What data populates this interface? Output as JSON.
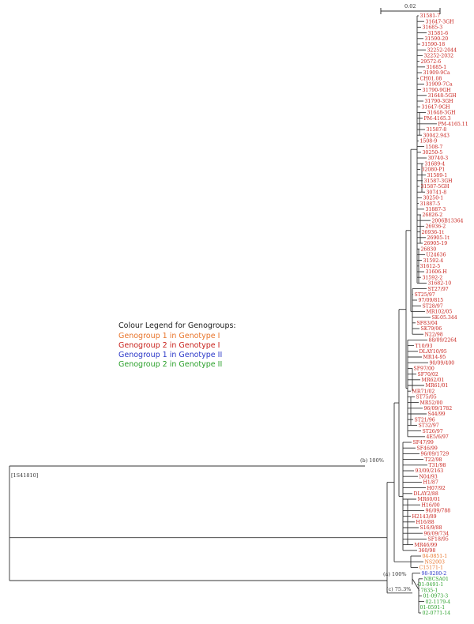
{
  "colors": {
    "orange": "#e8742a",
    "red": "#c8221c",
    "blue": "#2a37c8",
    "green": "#2aa02a",
    "tree": "#333333"
  },
  "scale_bar": {
    "label": "0.02"
  },
  "legend": {
    "title": "Colour Legend for Genogroups:",
    "items": [
      {
        "text": "Genogroup 1 in Genotype I",
        "color": "orange"
      },
      {
        "text": "Genogroup 2 in Genotype I",
        "color": "red"
      },
      {
        "text": "Genogroup 1 in Genotype II",
        "color": "blue"
      },
      {
        "text": "Genogroup 2 in Genotype II",
        "color": "green"
      }
    ]
  },
  "nodes": {
    "root": "[1S41810]",
    "b": "(b)  100%",
    "a": "(a)  100%",
    "c": "(c)  75.3%"
  },
  "taxa": [
    {
      "name": "31581-7",
      "color": "red"
    },
    {
      "name": "31647-3GH",
      "color": "red"
    },
    {
      "name": "31685-3",
      "color": "red"
    },
    {
      "name": "31581-6",
      "color": "red"
    },
    {
      "name": "31590-20",
      "color": "red"
    },
    {
      "name": "31590-18",
      "color": "red"
    },
    {
      "name": "32252-2044",
      "color": "red"
    },
    {
      "name": "32252-2032",
      "color": "red"
    },
    {
      "name": "29572-6",
      "color": "red"
    },
    {
      "name": "31685-1",
      "color": "red"
    },
    {
      "name": "31909-9Ca",
      "color": "red"
    },
    {
      "name": "CH01.08",
      "color": "red"
    },
    {
      "name": "31909-7Ca",
      "color": "red"
    },
    {
      "name": "31790-9GH",
      "color": "red"
    },
    {
      "name": "31648-5GH",
      "color": "red"
    },
    {
      "name": "31790-3GH",
      "color": "red"
    },
    {
      "name": "31647-9GH",
      "color": "red"
    },
    {
      "name": "31648-3GH",
      "color": "red"
    },
    {
      "name": "PM-4165.3",
      "color": "red"
    },
    {
      "name": "PM-4165.11",
      "color": "red"
    },
    {
      "name": "31587-8",
      "color": "red"
    },
    {
      "name": "30042.943",
      "color": "red"
    },
    {
      "name": "1508-9",
      "color": "red"
    },
    {
      "name": "1508-7",
      "color": "red"
    },
    {
      "name": "30250-5",
      "color": "red"
    },
    {
      "name": "30740-3",
      "color": "red"
    },
    {
      "name": "31689-4",
      "color": "red"
    },
    {
      "name": "32080-P1",
      "color": "red"
    },
    {
      "name": "31589-1",
      "color": "red"
    },
    {
      "name": "31587-3GH",
      "color": "red"
    },
    {
      "name": "31587-5GH",
      "color": "red"
    },
    {
      "name": "30741-8",
      "color": "red"
    },
    {
      "name": "30250-1",
      "color": "red"
    },
    {
      "name": "31887-5",
      "color": "red"
    },
    {
      "name": "31887-3",
      "color": "red"
    },
    {
      "name": "26826-2",
      "color": "red"
    },
    {
      "name": "2006B13364",
      "color": "red"
    },
    {
      "name": "26936-2",
      "color": "red"
    },
    {
      "name": "26936-1t",
      "color": "red"
    },
    {
      "name": "26905-1t",
      "color": "red"
    },
    {
      "name": "26905-19",
      "color": "red"
    },
    {
      "name": "26830",
      "color": "red"
    },
    {
      "name": "U24636",
      "color": "red"
    },
    {
      "name": "31592-4",
      "color": "red"
    },
    {
      "name": "31612-5",
      "color": "red"
    },
    {
      "name": "31606-H",
      "color": "red"
    },
    {
      "name": "31592-2",
      "color": "red"
    },
    {
      "name": "31682-10",
      "color": "red"
    },
    {
      "name": "ST27/97",
      "color": "red"
    },
    {
      "name": "ST25/97",
      "color": "red"
    },
    {
      "name": "97/09/815",
      "color": "red"
    },
    {
      "name": "ST28/97",
      "color": "red"
    },
    {
      "name": "MR102/05",
      "color": "red"
    },
    {
      "name": "SK-05.344",
      "color": "red"
    },
    {
      "name": "SF83/04",
      "color": "red"
    },
    {
      "name": "SK79/06",
      "color": "red"
    },
    {
      "name": "N22/98",
      "color": "red"
    },
    {
      "name": "88/09/2264",
      "color": "red"
    },
    {
      "name": "T10/93",
      "color": "red"
    },
    {
      "name": "DLAY10/95",
      "color": "red"
    },
    {
      "name": "MR14-95",
      "color": "red"
    },
    {
      "name": "90/09/400",
      "color": "red"
    },
    {
      "name": "SF97/00",
      "color": "red"
    },
    {
      "name": "SF70/02",
      "color": "red"
    },
    {
      "name": "MR62/01",
      "color": "red"
    },
    {
      "name": "MR61/01",
      "color": "red"
    },
    {
      "name": "MR71/02",
      "color": "red"
    },
    {
      "name": "ST75/05",
      "color": "red"
    },
    {
      "name": "MR52/00",
      "color": "red"
    },
    {
      "name": "96/09/1782",
      "color": "red"
    },
    {
      "name": "S44/99",
      "color": "red"
    },
    {
      "name": "ST21/96",
      "color": "red"
    },
    {
      "name": "ST32/97",
      "color": "red"
    },
    {
      "name": "ST26/97",
      "color": "red"
    },
    {
      "name": "4E5/6/97",
      "color": "red"
    },
    {
      "name": "SF47/99",
      "color": "red"
    },
    {
      "name": "SF46/99",
      "color": "red"
    },
    {
      "name": "96/09/1729",
      "color": "red"
    },
    {
      "name": "T22/98",
      "color": "red"
    },
    {
      "name": "T31/98",
      "color": "red"
    },
    {
      "name": "93/09/2163",
      "color": "red"
    },
    {
      "name": "N04/93",
      "color": "red"
    },
    {
      "name": "H1/87",
      "color": "red"
    },
    {
      "name": "H07/92",
      "color": "red"
    },
    {
      "name": "DLAY2/88",
      "color": "red"
    },
    {
      "name": "MR60/01",
      "color": "red"
    },
    {
      "name": "H16/00",
      "color": "red"
    },
    {
      "name": "96/09/788",
      "color": "red"
    },
    {
      "name": "H2143/89",
      "color": "red"
    },
    {
      "name": "H16/88",
      "color": "red"
    },
    {
      "name": "S16/9/88",
      "color": "red"
    },
    {
      "name": "96/09/734",
      "color": "red"
    },
    {
      "name": "SF18/95",
      "color": "red"
    },
    {
      "name": "MR46/99",
      "color": "red"
    },
    {
      "name": "360/98",
      "color": "red"
    },
    {
      "name": "04-0851-1",
      "color": "orange"
    },
    {
      "name": "NS2003",
      "color": "orange"
    },
    {
      "name": "C15171-1",
      "color": "orange"
    },
    {
      "name": "98-0280-2",
      "color": "blue"
    },
    {
      "name": "NBCSA01",
      "color": "green"
    },
    {
      "name": "01-0491-1",
      "color": "green"
    },
    {
      "name": "7835-1",
      "color": "green"
    },
    {
      "name": "01-0973-3",
      "color": "green"
    },
    {
      "name": "02-1179-4",
      "color": "green"
    },
    {
      "name": "01-0591-1",
      "color": "green"
    },
    {
      "name": "02-0771-14",
      "color": "green"
    }
  ]
}
